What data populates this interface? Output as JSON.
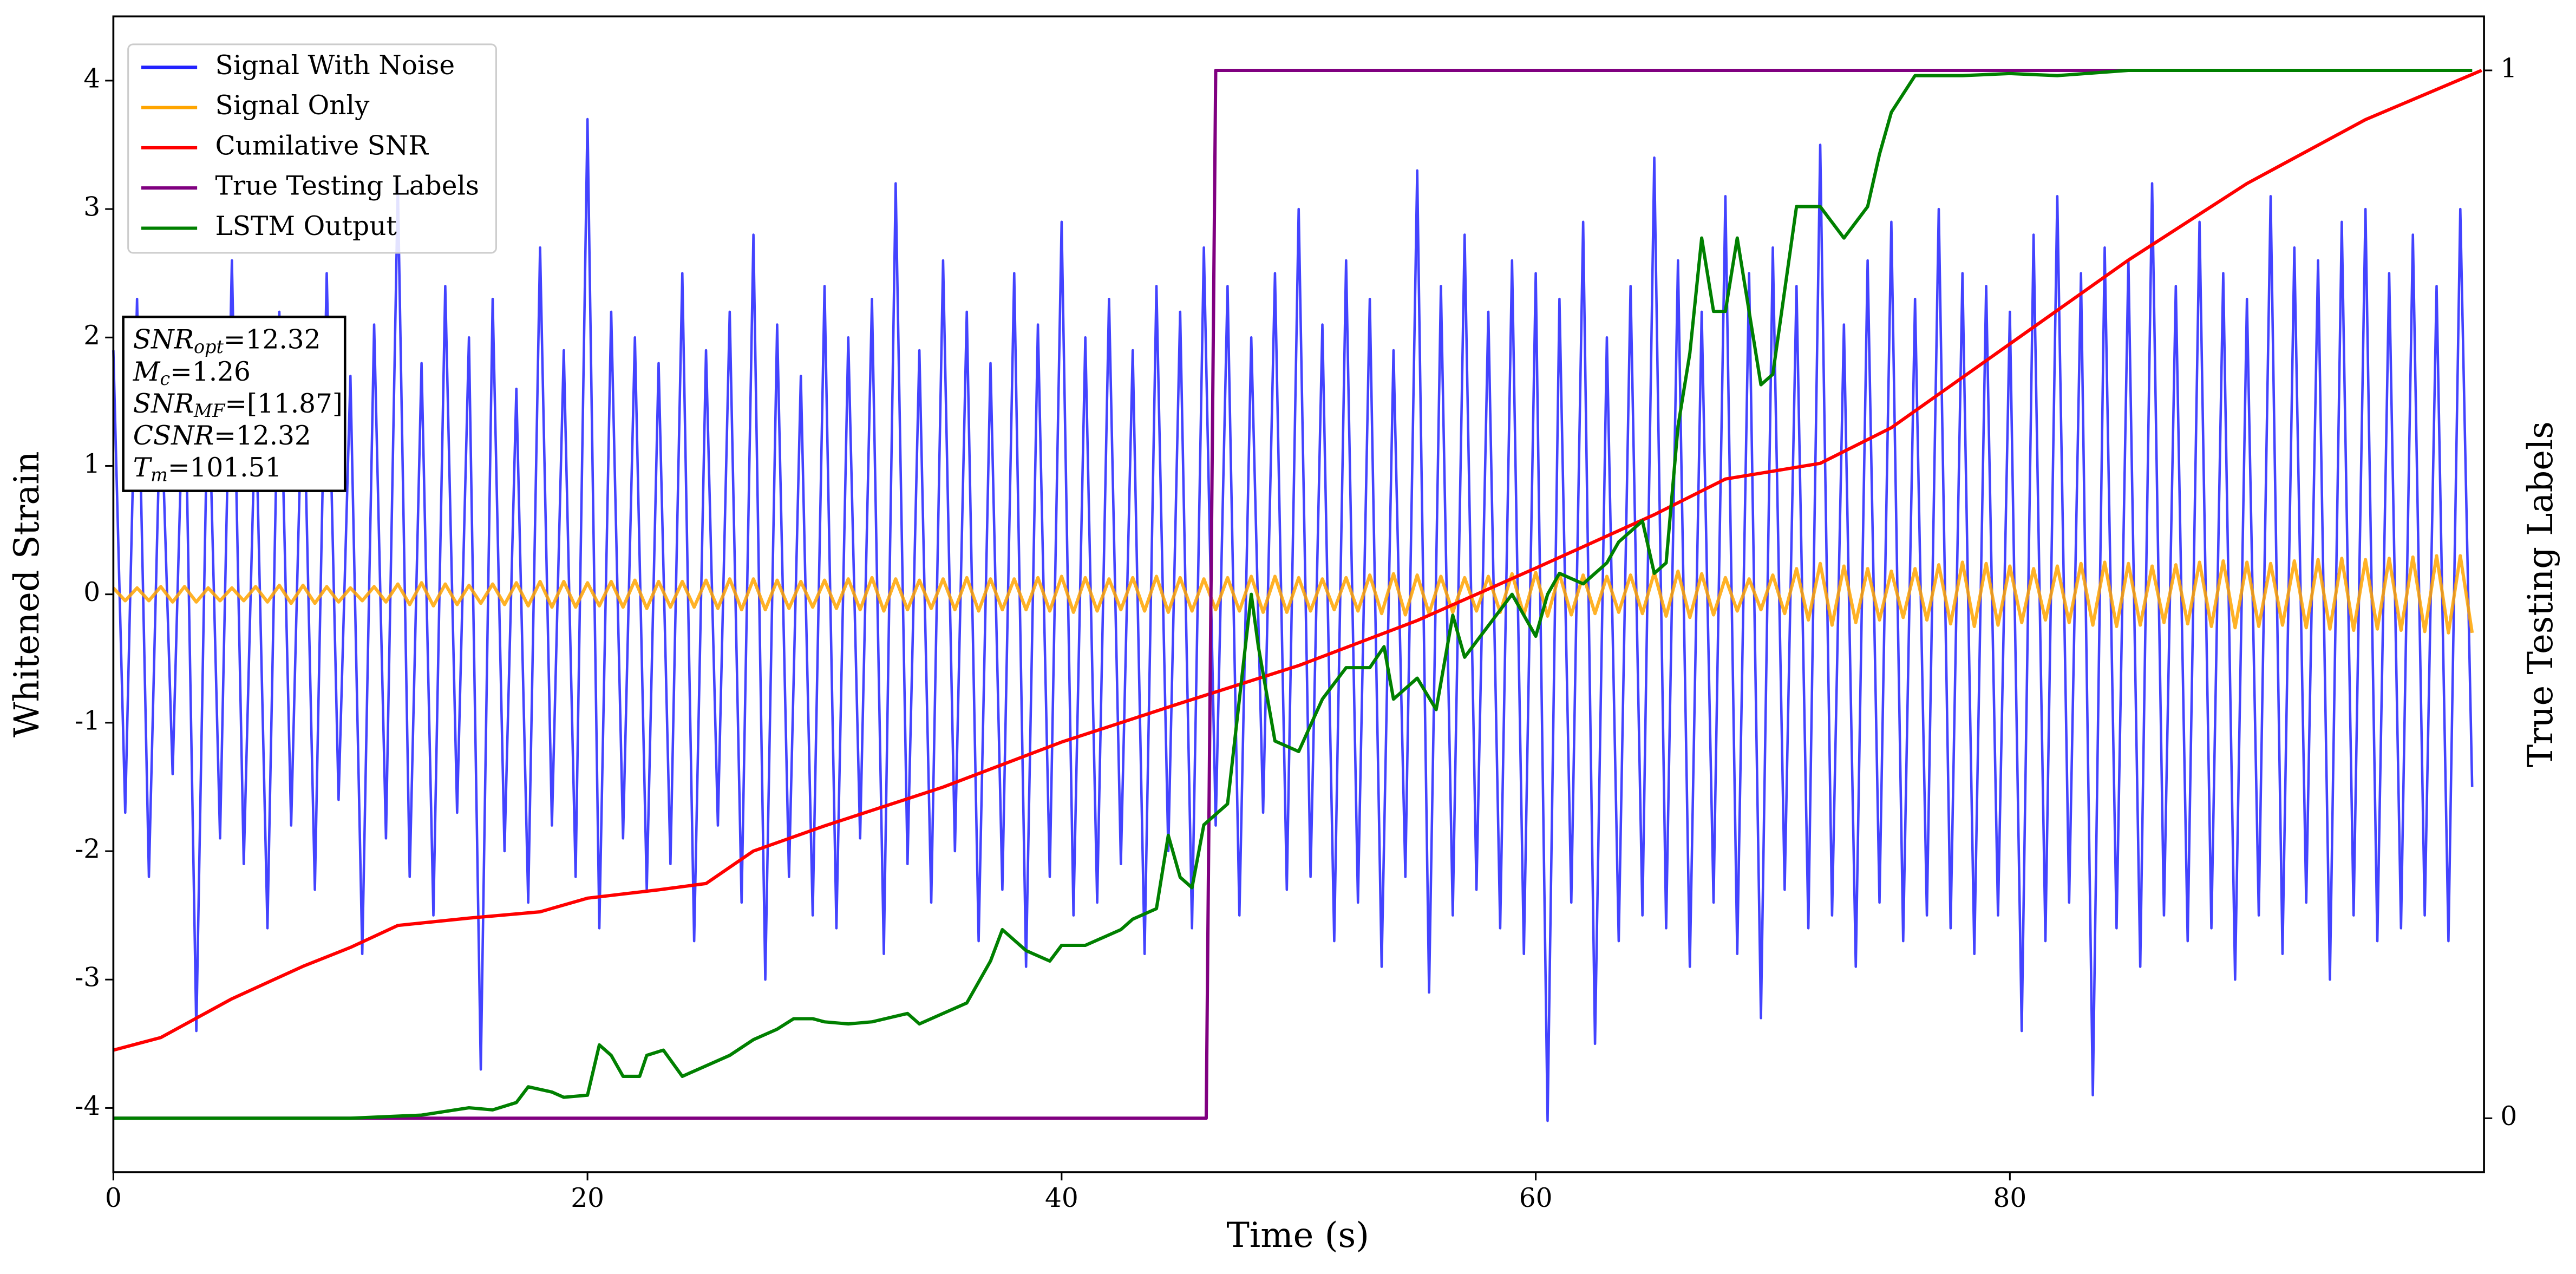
{
  "chart_data": {
    "type": "line",
    "xlabel": "Time (s)",
    "ylabel": "Whitened Strain",
    "y2label": "True Testing Labels",
    "xlim": [
      0,
      100
    ],
    "ylim": [
      -4.5,
      4.5
    ],
    "y2lim": [
      -0.0515,
      1.0515
    ],
    "xticks": [
      0,
      20,
      40,
      60,
      80
    ],
    "yticks": [
      -4,
      -3,
      -2,
      -1,
      0,
      1,
      2,
      3,
      4
    ],
    "y2ticks": [
      0,
      1
    ],
    "legend": "upper left",
    "annotation": [
      {
        "base": "SNR",
        "sub": "opt",
        "text": "=12.32"
      },
      {
        "base": "M",
        "sub": "c",
        "text": "=1.26"
      },
      {
        "base": "SNR",
        "sub": "MF",
        "text": "=[11.87]"
      },
      {
        "base": "CSNR",
        "text": "=12.32"
      },
      {
        "base": "T",
        "sub": "m",
        "text": "=101.51"
      }
    ],
    "x": [
      0,
      0.5,
      1,
      1.5,
      2,
      2.5,
      3,
      3.5,
      4,
      4.5,
      5,
      5.5,
      6,
      6.5,
      7,
      7.5,
      8,
      8.5,
      9,
      9.5,
      10,
      10.5,
      11,
      11.5,
      12,
      12.5,
      13,
      13.5,
      14,
      14.5,
      15,
      15.5,
      16,
      16.5,
      17,
      17.5,
      18,
      18.5,
      19,
      19.5,
      20,
      20.5,
      21,
      21.5,
      22,
      22.5,
      23,
      23.5,
      24,
      24.5,
      25,
      25.5,
      26,
      26.5,
      27,
      27.5,
      28,
      28.5,
      29,
      29.5,
      30,
      30.5,
      31,
      31.5,
      32,
      32.5,
      33,
      33.5,
      34,
      34.5,
      35,
      35.5,
      36,
      36.5,
      37,
      37.5,
      38,
      38.5,
      39,
      39.5,
      40,
      40.5,
      41,
      41.5,
      42,
      42.5,
      43,
      43.5,
      44,
      44.5,
      45,
      45.5,
      46,
      46.5,
      47,
      47.5,
      48,
      48.5,
      49,
      49.5,
      50,
      50.5,
      51,
      51.5,
      52,
      52.5,
      53,
      53.5,
      54,
      54.5,
      55,
      55.5,
      56,
      56.5,
      57,
      57.5,
      58,
      58.5,
      59,
      59.5,
      60,
      60.5,
      61,
      61.5,
      62,
      62.5,
      63,
      63.5,
      64,
      64.5,
      65,
      65.5,
      66,
      66.5,
      67,
      67.5,
      68,
      68.5,
      69,
      69.5,
      70,
      70.5,
      71,
      71.5,
      72,
      72.5,
      73,
      73.5,
      74,
      74.5,
      75,
      75.5,
      76,
      76.5,
      77,
      77.5,
      78,
      78.5,
      79,
      79.5,
      80,
      80.5,
      81,
      81.5,
      82,
      82.5,
      83,
      83.5,
      84,
      84.5,
      85,
      85.5,
      86,
      86.5,
      87,
      87.5,
      88,
      88.5,
      89,
      89.5,
      90,
      90.5,
      91,
      91.5,
      92,
      92.5,
      93,
      93.5,
      94,
      94.5,
      95,
      95.5,
      96,
      96.5,
      97,
      97.5,
      98,
      98.5,
      99,
      99.5
    ],
    "series": [
      {
        "name": "Signal With Noise",
        "color": "#2222ff",
        "values": [
          1.9,
          -1.7,
          2.3,
          -2.2,
          1.6,
          -1.4,
          2.0,
          -3.4,
          1.8,
          -1.9,
          2.6,
          -2.1,
          1.5,
          -2.6,
          2.2,
          -1.8,
          1.9,
          -2.3,
          2.5,
          -1.6,
          1.7,
          -2.8,
          2.1,
          -1.9,
          3.2,
          -2.2,
          1.8,
          -2.5,
          2.4,
          -1.7,
          2.0,
          -3.7,
          2.3,
          -2.0,
          1.6,
          -2.4,
          2.7,
          -1.8,
          1.9,
          -2.2,
          3.7,
          -2.6,
          2.2,
          -1.9,
          2.0,
          -2.3,
          1.8,
          -2.1,
          2.5,
          -2.7,
          1.9,
          -1.8,
          2.2,
          -2.4,
          2.8,
          -3.0,
          2.1,
          -2.2,
          1.7,
          -2.5,
          2.4,
          -2.6,
          2.0,
          -1.9,
          2.3,
          -2.8,
          3.2,
          -2.1,
          1.9,
          -2.4,
          2.6,
          -2.0,
          2.2,
          -2.7,
          1.8,
          -2.3,
          2.5,
          -2.9,
          2.1,
          -2.2,
          2.9,
          -2.5,
          2.0,
          -2.4,
          2.3,
          -2.1,
          1.9,
          -2.8,
          2.4,
          -2.0,
          2.2,
          -2.6,
          2.7,
          -1.8,
          2.4,
          -2.5,
          2.0,
          -1.7,
          2.5,
          -2.3,
          3.0,
          -2.2,
          2.1,
          -2.7,
          2.6,
          -2.4,
          2.3,
          -2.9,
          1.9,
          -2.2,
          3.3,
          -3.1,
          2.4,
          -2.5,
          2.8,
          -2.3,
          2.2,
          -2.6,
          2.6,
          -2.8,
          2.5,
          -4.1,
          2.3,
          -2.4,
          2.9,
          -3.5,
          2.0,
          -2.7,
          2.4,
          -2.5,
          3.4,
          -2.6,
          2.6,
          -2.9,
          2.2,
          -2.4,
          3.1,
          -2.8,
          2.5,
          -3.3,
          2.7,
          -2.3,
          2.4,
          -2.6,
          3.5,
          -2.5,
          2.1,
          -2.9,
          2.6,
          -2.4,
          2.9,
          -2.7,
          2.3,
          -2.5,
          3.0,
          -2.6,
          2.5,
          -2.8,
          2.4,
          -2.5,
          2.2,
          -3.4,
          2.8,
          -2.7,
          3.1,
          -2.4,
          2.5,
          -3.9,
          2.7,
          -2.6,
          2.6,
          -2.9,
          3.2,
          -2.5,
          2.4,
          -2.7,
          2.9,
          -2.6,
          2.5,
          -3.0,
          2.3,
          -2.5,
          3.1,
          -2.8,
          2.7,
          -2.4,
          2.6,
          -3.0,
          2.9,
          -2.5,
          3.0,
          -2.7,
          2.5,
          -2.6,
          2.8,
          -2.5,
          2.4,
          -2.7,
          3.0,
          -1.5
        ]
      },
      {
        "name": "Signal Only",
        "color": "orange",
        "values": [
          0.05,
          -0.05,
          0.05,
          -0.05,
          0.06,
          -0.06,
          0.06,
          -0.06,
          0.05,
          -0.05,
          0.05,
          -0.05,
          0.06,
          -0.06,
          0.07,
          -0.07,
          0.07,
          -0.07,
          0.06,
          -0.06,
          0.05,
          -0.05,
          0.06,
          -0.06,
          0.08,
          -0.08,
          0.09,
          -0.09,
          0.08,
          -0.08,
          0.07,
          -0.07,
          0.08,
          -0.08,
          0.09,
          -0.09,
          0.1,
          -0.1,
          0.1,
          -0.1,
          0.09,
          -0.09,
          0.1,
          -0.1,
          0.11,
          -0.11,
          0.1,
          -0.1,
          0.1,
          -0.1,
          0.11,
          -0.11,
          0.12,
          -0.12,
          0.12,
          -0.12,
          0.11,
          -0.11,
          0.1,
          -0.1,
          0.11,
          -0.11,
          0.12,
          -0.12,
          0.13,
          -0.13,
          0.12,
          -0.12,
          0.11,
          -0.11,
          0.12,
          -0.12,
          0.13,
          -0.13,
          0.12,
          -0.12,
          0.12,
          -0.12,
          0.13,
          -0.13,
          0.14,
          -0.14,
          0.13,
          -0.13,
          0.12,
          -0.12,
          0.13,
          -0.13,
          0.14,
          -0.14,
          0.13,
          -0.13,
          0.12,
          -0.12,
          0.13,
          -0.13,
          0.14,
          -0.14,
          0.14,
          -0.14,
          0.13,
          -0.13,
          0.12,
          -0.12,
          0.13,
          -0.13,
          0.15,
          -0.15,
          0.16,
          -0.16,
          0.15,
          -0.15,
          0.14,
          -0.14,
          0.13,
          -0.13,
          0.14,
          -0.14,
          0.16,
          -0.16,
          0.17,
          -0.17,
          0.16,
          -0.16,
          0.15,
          -0.15,
          0.14,
          -0.14,
          0.15,
          -0.15,
          0.17,
          -0.17,
          0.18,
          -0.18,
          0.16,
          -0.16,
          0.13,
          -0.13,
          0.12,
          -0.12,
          0.15,
          -0.15,
          0.2,
          -0.2,
          0.24,
          -0.24,
          0.22,
          -0.22,
          0.2,
          -0.2,
          0.18,
          -0.18,
          0.2,
          -0.2,
          0.23,
          -0.23,
          0.25,
          -0.25,
          0.24,
          -0.24,
          0.22,
          -0.22,
          0.2,
          -0.2,
          0.22,
          -0.22,
          0.24,
          -0.24,
          0.25,
          -0.25,
          0.24,
          -0.24,
          0.22,
          -0.22,
          0.23,
          -0.23,
          0.25,
          -0.25,
          0.26,
          -0.26,
          0.25,
          -0.25,
          0.24,
          -0.24,
          0.26,
          -0.26,
          0.27,
          -0.27,
          0.28,
          -0.28,
          0.27,
          -0.27,
          0.28,
          -0.28,
          0.29,
          -0.29,
          0.3,
          -0.3,
          0.3,
          -0.3
        ]
      },
      {
        "name": "Cumilative SNR",
        "color": "#ff0000",
        "axis": "y2",
        "x": [
          0,
          2,
          5,
          8,
          10,
          12,
          15,
          18,
          20,
          23,
          25,
          27,
          30,
          35,
          40,
          45,
          50,
          55,
          60,
          65,
          68,
          72,
          75,
          80,
          85,
          90,
          95,
          99.9
        ],
        "values": [
          0.065,
          0.077,
          0.114,
          0.145,
          0.163,
          0.184,
          0.191,
          0.197,
          0.21,
          0.218,
          0.224,
          0.255,
          0.279,
          0.316,
          0.359,
          0.396,
          0.432,
          0.475,
          0.525,
          0.576,
          0.61,
          0.625,
          0.659,
          0.739,
          0.819,
          0.892,
          0.953,
          1.0
        ]
      },
      {
        "name": "True Testing Labels",
        "color": "#800080",
        "axis": "y2",
        "x": [
          0,
          46.1,
          46.5,
          99.5
        ],
        "values": [
          0,
          0,
          1,
          1
        ]
      },
      {
        "name": "LSTM Output",
        "color": "#008000",
        "axis": "y2",
        "x": [
          0,
          10,
          13,
          15,
          16,
          17,
          17.5,
          18.5,
          19,
          20,
          20.5,
          21,
          21.5,
          22.2,
          22.5,
          23.2,
          24,
          25,
          26,
          27,
          28,
          28.7,
          29.5,
          30,
          31,
          32,
          33.5,
          34,
          35,
          36,
          37,
          37.5,
          38.5,
          39.5,
          40,
          41,
          42.5,
          43,
          44,
          44.5,
          45,
          45.5,
          46,
          46.5,
          47,
          48,
          48.3,
          49,
          50,
          51,
          52,
          53,
          53.6,
          54,
          55,
          55.8,
          56.5,
          57,
          58,
          59,
          60,
          60.5,
          61,
          62,
          63,
          63.5,
          64.5,
          65,
          65.5,
          66,
          66.5,
          67,
          67.5,
          68,
          68.5,
          69.5,
          70,
          71,
          72,
          73,
          74,
          74.5,
          75,
          76,
          78,
          80,
          82,
          85,
          99.5
        ],
        "values": [
          0,
          0,
          0.003,
          0.01,
          0.008,
          0.015,
          0.03,
          0.025,
          0.02,
          0.022,
          0.07,
          0.06,
          0.04,
          0.04,
          0.06,
          0.065,
          0.04,
          0.05,
          0.06,
          0.075,
          0.085,
          0.095,
          0.095,
          0.092,
          0.09,
          0.092,
          0.1,
          0.09,
          0.1,
          0.11,
          0.15,
          0.18,
          0.16,
          0.15,
          0.165,
          0.165,
          0.18,
          0.19,
          0.2,
          0.27,
          0.23,
          0.22,
          0.28,
          0.29,
          0.3,
          0.5,
          0.45,
          0.36,
          0.35,
          0.4,
          0.43,
          0.43,
          0.45,
          0.4,
          0.42,
          0.39,
          0.48,
          0.44,
          0.47,
          0.5,
          0.46,
          0.5,
          0.52,
          0.51,
          0.53,
          0.55,
          0.57,
          0.52,
          0.53,
          0.66,
          0.73,
          0.84,
          0.77,
          0.77,
          0.84,
          0.7,
          0.71,
          0.87,
          0.87,
          0.84,
          0.87,
          0.92,
          0.96,
          0.995,
          0.995,
          0.997,
          0.995,
          1,
          1
        ]
      }
    ]
  }
}
